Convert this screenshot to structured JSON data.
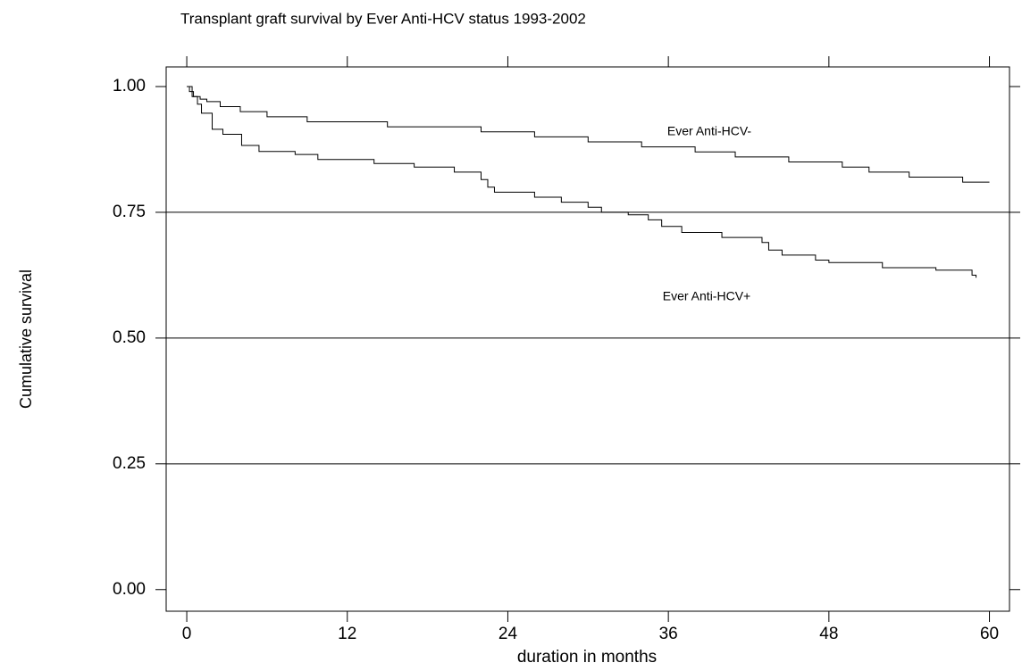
{
  "chart_data": {
    "type": "step",
    "title": "Transplant graft survival by Ever Anti-HCV status 1993-2002",
    "xlabel": "duration in months",
    "ylabel": "Cumulative survival",
    "xlim": [
      -1.54,
      61.5
    ],
    "ylim": [
      -0.043,
      1.039
    ],
    "xticks": [
      0,
      12,
      24,
      36,
      48,
      60
    ],
    "yticks": [
      {
        "value": 0,
        "label": "0.00"
      },
      {
        "value": 0.25,
        "label": "0.25"
      },
      {
        "value": 0.5,
        "label": "0.50"
      },
      {
        "value": 0.75,
        "label": "0.75"
      },
      {
        "value": 1,
        "label": "1.00"
      }
    ],
    "ygrid": [
      0.25,
      0.5,
      0.75
    ],
    "series": [
      {
        "name": "Ever Anti-HCV-",
        "color": "#000000",
        "x": [
          0,
          0.2,
          0.5,
          1,
          1.5,
          2.5,
          4,
          6,
          9,
          15,
          22,
          26,
          30,
          34,
          38,
          41,
          45,
          49,
          51,
          54,
          58,
          60
        ],
        "values": [
          1.0,
          0.99,
          0.98,
          0.975,
          0.97,
          0.96,
          0.95,
          0.94,
          0.93,
          0.92,
          0.91,
          0.9,
          0.89,
          0.88,
          0.87,
          0.86,
          0.85,
          0.84,
          0.83,
          0.82,
          0.81,
          0.81
        ]
      },
      {
        "name": "Ever Anti-HCV+",
        "color": "#000000",
        "x": [
          0,
          0.4,
          0.8,
          1.1,
          1.9,
          2.7,
          4.1,
          5.4,
          8.1,
          9.8,
          14,
          17,
          20,
          22,
          22.5,
          23,
          26,
          28,
          30,
          31,
          33,
          34.5,
          35.5,
          37,
          40,
          43,
          43.5,
          44.5,
          47,
          48,
          52,
          56,
          58.7,
          59
        ],
        "values": [
          1.0,
          0.98,
          0.965,
          0.947,
          0.915,
          0.905,
          0.883,
          0.871,
          0.865,
          0.855,
          0.847,
          0.84,
          0.83,
          0.815,
          0.8,
          0.79,
          0.78,
          0.77,
          0.76,
          0.75,
          0.745,
          0.735,
          0.722,
          0.71,
          0.7,
          0.69,
          0.675,
          0.665,
          0.655,
          0.65,
          0.64,
          0.635,
          0.625,
          0.62
        ]
      }
    ]
  }
}
